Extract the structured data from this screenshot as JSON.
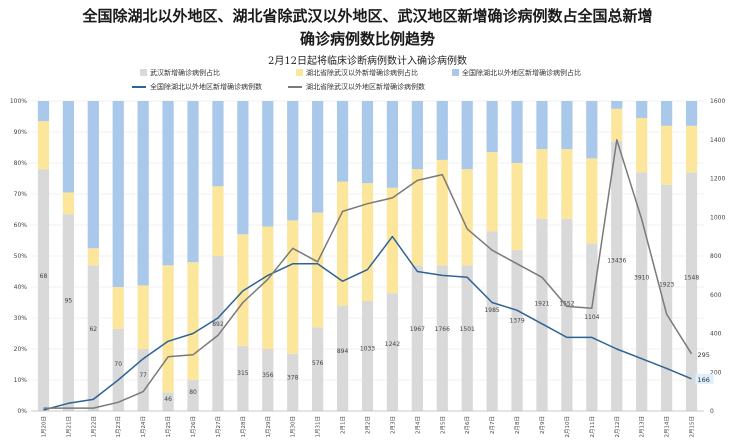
{
  "title_line1": "全国除湖北以外地区、湖北省除武汉以外地区、武汉地区新增确诊病例数占全国总新增",
  "title_line2": "确诊病例数比例趋势",
  "subtitle": "2月12日起将临床诊断病例数计入确诊病例数",
  "colors": {
    "wuhan": "#d9d9d9",
    "hubei_ex_wuhan": "#fbe69c",
    "national_ex_hubei": "#a9c8ea",
    "line_national": "#2e6395",
    "line_hubei": "#7a7a7a",
    "highlight_label": "#ddeefc"
  },
  "chart_data": {
    "type": "bar",
    "stacked": true,
    "categories": [
      "1月20日",
      "1月21日",
      "1月22日",
      "1月23日",
      "1月24日",
      "1月25日",
      "1月26日",
      "1月27日",
      "1月28日",
      "1月29日",
      "1月30日",
      "1月31日",
      "2月1日",
      "2月2日",
      "2月3日",
      "2月4日",
      "2月5日",
      "2月6日",
      "2月7日",
      "2月8日",
      "2月9日",
      "2月10日",
      "2月11日",
      "2月12日",
      "2月13日",
      "2月14日",
      "2月15日"
    ],
    "series": [
      {
        "name": "武汉新增确诊病例占比",
        "axis": "left",
        "kind": "bar",
        "color": "#d9d9d9",
        "values": [
          78,
          63.5,
          47,
          26.5,
          20,
          6,
          10,
          50,
          21,
          20,
          18.5,
          27,
          34,
          35.5,
          38,
          47,
          47,
          47,
          58,
          52,
          62,
          62,
          54,
          87,
          77,
          73,
          77
        ]
      },
      {
        "name": "湖北省除武汉以外新增确诊病例占比",
        "axis": "left",
        "kind": "bar",
        "color": "#fbe69c",
        "values": [
          15.5,
          7,
          5.5,
          13.5,
          20.5,
          41,
          38,
          22.5,
          36,
          39.5,
          43,
          37,
          40,
          38,
          34,
          31,
          34,
          31,
          25.5,
          28,
          22.5,
          22.5,
          27.5,
          10.5,
          17.5,
          19,
          15
        ]
      },
      {
        "name": "全国除湖北以外地区新增确诊病例占比",
        "axis": "left",
        "kind": "bar",
        "color": "#a9c8ea",
        "values": [
          6.5,
          29.5,
          47.5,
          60,
          59.5,
          53,
          52,
          27.5,
          43,
          40.5,
          38.5,
          36,
          26,
          26.5,
          28,
          22,
          19,
          22,
          16.5,
          20,
          15.5,
          15.5,
          18.5,
          2.5,
          5.5,
          8,
          8
        ]
      },
      {
        "name": "全国除湖北以外地区新增确诊病例数",
        "axis": "right",
        "kind": "line",
        "color": "#2e6395",
        "values": [
          5,
          40,
          60,
          160,
          270,
          360,
          400,
          480,
          620,
          700,
          760,
          760,
          670,
          730,
          900,
          720,
          700,
          690,
          560,
          520,
          450,
          380,
          380,
          320,
          270,
          220,
          166
        ]
      },
      {
        "name": "湖北省除武汉以外地区新增确诊病例数",
        "axis": "right",
        "kind": "line",
        "color": "#7a7a7a",
        "values": [
          15,
          15,
          15,
          45,
          100,
          280,
          290,
          390,
          560,
          680,
          840,
          770,
          1030,
          1070,
          1100,
          1190,
          1220,
          940,
          830,
          760,
          690,
          540,
          530,
          1400,
          990,
          500,
          295
        ]
      }
    ],
    "bar_labels": [
      "68",
      "95",
      "62",
      "70",
      "77",
      "46",
      "80",
      "892",
      "315",
      "356",
      "378",
      "576",
      "894",
      "1033",
      "1242",
      "1967",
      "1766",
      "1501",
      "1985",
      "1379",
      "1921",
      "1552",
      "1104",
      "13436",
      "3910",
      "1923",
      "1548"
    ],
    "point_labels": [
      {
        "index": 26,
        "series": 4,
        "text": "295"
      },
      {
        "index": 26,
        "series": 3,
        "text": "166",
        "highlight": true
      }
    ],
    "left_axis": {
      "ticks": [
        "0%",
        "10%",
        "20%",
        "30%",
        "40%",
        "50%",
        "60%",
        "70%",
        "80%",
        "90%",
        "100%"
      ],
      "min": 0,
      "max": 100
    },
    "right_axis": {
      "ticks": [
        "0",
        "200",
        "400",
        "600",
        "800",
        "1000",
        "1200",
        "1400",
        "1600"
      ],
      "min": 0,
      "max": 1600
    },
    "legend": "top"
  }
}
